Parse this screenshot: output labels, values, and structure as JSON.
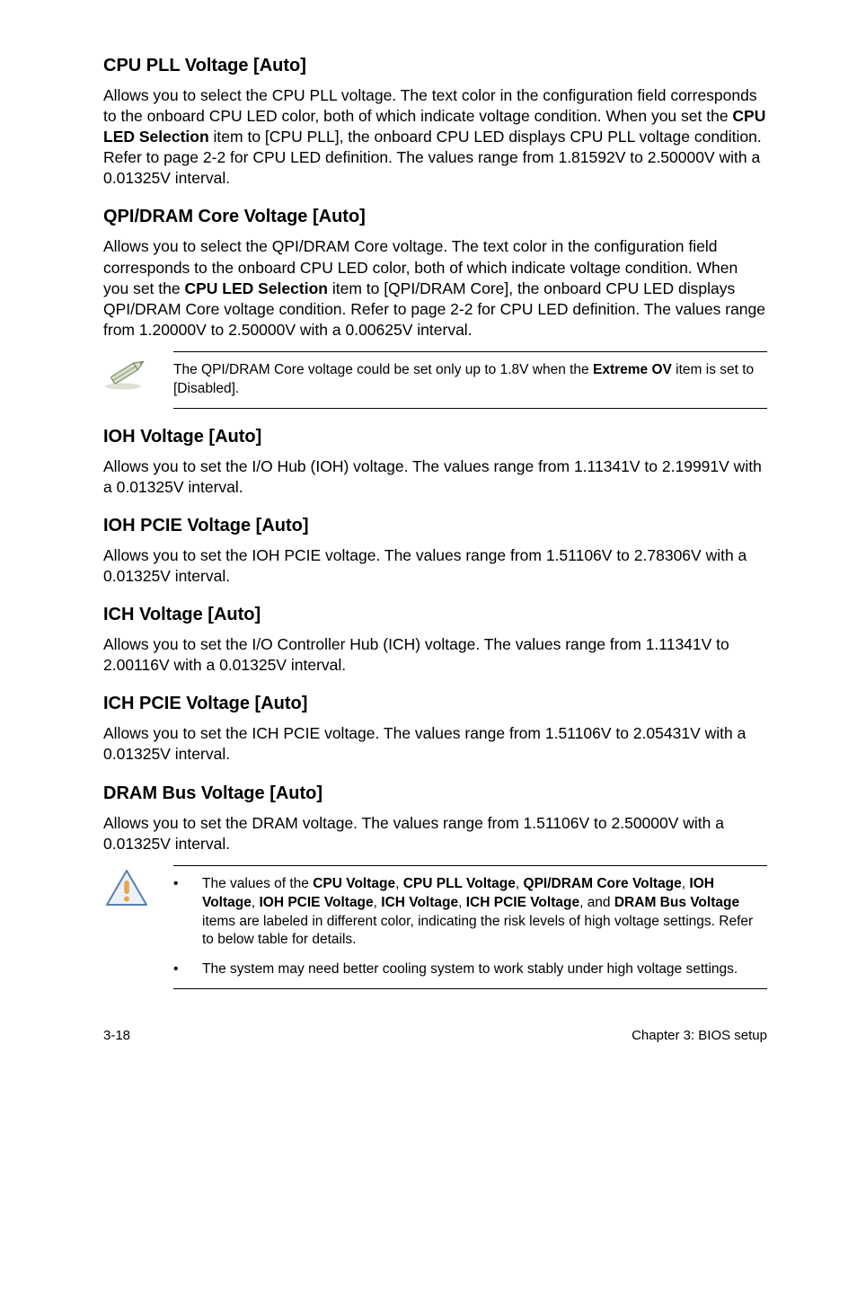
{
  "sections": [
    {
      "heading": "CPU PLL Voltage [Auto]",
      "body": "Allows you to select the CPU PLL voltage. The text color in the configuration field corresponds to the onboard CPU LED color, both of which indicate voltage condition. When you set the {b}CPU LED Selection{/b} item to [CPU PLL], the onboard CPU LED displays CPU PLL voltage condition. Refer to page 2-2 for CPU LED definition. The values range from 1.81592V to 2.50000V with a 0.01325V interval."
    },
    {
      "heading": "QPI/DRAM Core Voltage [Auto]",
      "body": "Allows you to select the QPI/DRAM Core voltage. The text color in the configuration field corresponds to the onboard CPU LED color, both of which indicate voltage condition. When you set the {b}CPU LED Selection{/b} item to [QPI/DRAM Core], the onboard CPU LED displays QPI/DRAM Core voltage condition. Refer to page 2-2 for CPU LED definition. The values range from 1.20000V to 2.50000V with a 0.00625V interval."
    }
  ],
  "note1": "The QPI/DRAM Core voltage could be set only up to 1.8V when the {b}Extreme OV{/b} item is set to [Disabled].",
  "sections2": [
    {
      "heading": "IOH Voltage [Auto]",
      "body": "Allows you to set the I/O Hub (IOH) voltage. The values range from 1.11341V to 2.19991V with a 0.01325V interval."
    },
    {
      "heading": "IOH PCIE Voltage [Auto]",
      "body": "Allows you to set the IOH PCIE voltage. The values range from 1.51106V to 2.78306V with a 0.01325V interval."
    },
    {
      "heading": "ICH Voltage [Auto]",
      "body": "Allows you to set the I/O Controller Hub (ICH) voltage. The values range from 1.11341V to 2.00116V with a 0.01325V interval."
    },
    {
      "heading": "ICH PCIE Voltage [Auto]",
      "body": "Allows you to set the ICH PCIE voltage. The values range from 1.51106V to 2.05431V with a 0.01325V interval."
    },
    {
      "heading": "DRAM Bus Voltage [Auto]",
      "body": "Allows you to set the DRAM voltage. The values range from 1.51106V to 2.50000V with a 0.01325V interval."
    }
  ],
  "warning_bullets": [
    "The values of the {b}CPU Voltage{/b}, {b}CPU PLL Voltage{/b}, {b}QPI/DRAM Core Voltage{/b}, {b}IOH Voltage{/b}, {b}IOH PCIE Voltage{/b}, {b}ICH Voltage{/b}, {b}ICH PCIE Voltage{/b}, and {b}DRAM Bus Voltage{/b} items are labeled in different color, indicating the risk levels of high voltage settings. Refer to below table for details.",
    "The system may need better cooling system to work stably under high voltage settings."
  ],
  "footer_left": "3-18",
  "footer_right": "Chapter 3: BIOS setup",
  "colors": {
    "pencil_stroke": "#7a8a6a",
    "pencil_fill": "#d8e0c8",
    "warn_stroke": "#5b7eaa",
    "warn_fill": "#eaf1f8",
    "warn_excl": "#e8a64d"
  }
}
